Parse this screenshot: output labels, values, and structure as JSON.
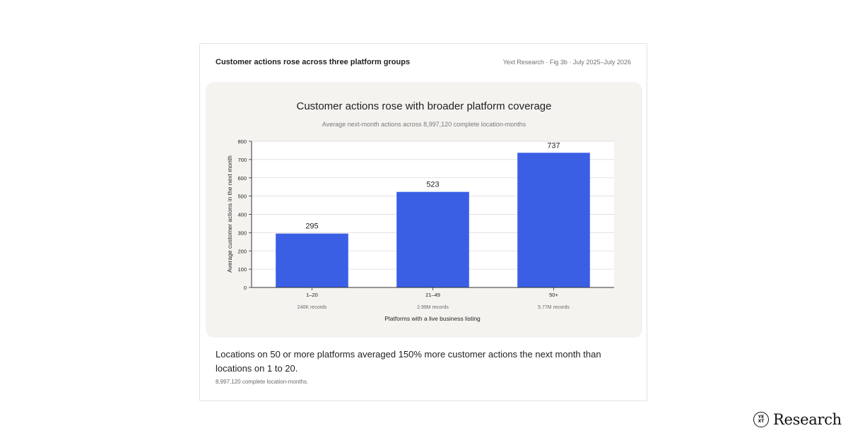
{
  "card": {
    "title": "Customer actions rose across three platform groups",
    "meta": "Yext Research · Fig 3b · July 2025–July 2026",
    "summary": "Locations on 50 or more platforms averaged 150% more customer actions the next month than locations on 1 to 20.",
    "footnote": "8,997,120 complete location-months."
  },
  "brand": {
    "logo_text": "YEXT",
    "wordmark": "Research"
  },
  "colors": {
    "bar": "#3a5fe5",
    "panel": "#f4f3ef",
    "grid": "#d9d9d9"
  },
  "chart_data": {
    "type": "bar",
    "title": "Customer actions rose with broader platform coverage",
    "subtitle": "Average next-month actions across 8,997,120 complete location-months",
    "xlabel": "Platforms with a live business listing",
    "ylabel": "Average customer actions in the next month",
    "categories": [
      "1–20",
      "21–49",
      "50+"
    ],
    "values": [
      295,
      523,
      737
    ],
    "value_labels": [
      "295",
      "523",
      "737"
    ],
    "record_labels": [
      "240K records",
      "2.99M records",
      "5.77M records"
    ],
    "ylim": [
      0,
      800
    ],
    "yticks": [
      0,
      100,
      200,
      300,
      400,
      500,
      600,
      700,
      800
    ],
    "grid": true,
    "legend": "none"
  }
}
